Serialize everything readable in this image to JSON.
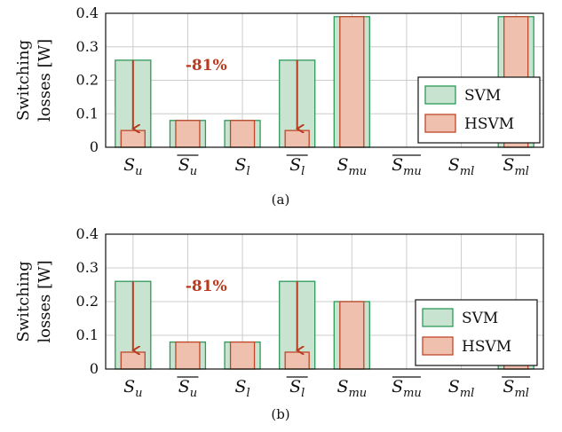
{
  "colors": {
    "svm_fill": "#c8e3cf",
    "svm_stroke": "#2e9a5a",
    "hsvm_fill": "#efc0ad",
    "hsvm_stroke": "#c0462a",
    "arrow": "#b83a1e",
    "grid": "#cccccc"
  },
  "chart_data": [
    {
      "type": "bar",
      "caption": "(a)",
      "ylabel": [
        "Switching",
        "losses [W]"
      ],
      "ylim": [
        0,
        0.4
      ],
      "yticks": [
        "0",
        "0.1",
        "0.2",
        "0.3",
        "0.4"
      ],
      "categories": [
        {
          "base": "S",
          "sub": "u",
          "bar": false
        },
        {
          "base": "S",
          "sub": "u",
          "bar": true
        },
        {
          "base": "S",
          "sub": "l",
          "bar": false
        },
        {
          "base": "S",
          "sub": "l",
          "bar": true
        },
        {
          "base": "S",
          "sub": "mu",
          "bar": false
        },
        {
          "base": "S",
          "sub": "mu",
          "bar": true
        },
        {
          "base": "S",
          "sub": "ml",
          "bar": false
        },
        {
          "base": "S",
          "sub": "ml",
          "bar": true
        }
      ],
      "series": [
        {
          "name": "SVM",
          "values": [
            0.26,
            0.08,
            0.08,
            0.26,
            0.39,
            0.0,
            0.0,
            0.39
          ]
        },
        {
          "name": "HSVM",
          "values": [
            0.05,
            0.08,
            0.08,
            0.05,
            0.39,
            0.0,
            0.0,
            0.39
          ]
        }
      ],
      "annotation": "-81%",
      "arrows_at": [
        0,
        3
      ],
      "legend_position": "right"
    },
    {
      "type": "bar",
      "caption": "(b)",
      "ylabel": [
        "Switching",
        "losses [W]"
      ],
      "ylim": [
        0,
        0.4
      ],
      "yticks": [
        "0",
        "0.1",
        "0.2",
        "0.3",
        "0.4"
      ],
      "categories": [
        {
          "base": "S",
          "sub": "u",
          "bar": false
        },
        {
          "base": "S",
          "sub": "u",
          "bar": true
        },
        {
          "base": "S",
          "sub": "l",
          "bar": false
        },
        {
          "base": "S",
          "sub": "l",
          "bar": true
        },
        {
          "base": "S",
          "sub": "mu",
          "bar": false
        },
        {
          "base": "S",
          "sub": "mu",
          "bar": true
        },
        {
          "base": "S",
          "sub": "ml",
          "bar": false
        },
        {
          "base": "S",
          "sub": "ml",
          "bar": true
        }
      ],
      "series": [
        {
          "name": "SVM",
          "values": [
            0.26,
            0.08,
            0.08,
            0.26,
            0.2,
            0.0,
            0.0,
            0.02
          ]
        },
        {
          "name": "HSVM",
          "values": [
            0.05,
            0.08,
            0.08,
            0.05,
            0.2,
            0.0,
            0.0,
            0.02
          ]
        }
      ],
      "annotation": "-81%",
      "arrows_at": [
        0,
        3
      ],
      "legend_position": "right"
    }
  ]
}
